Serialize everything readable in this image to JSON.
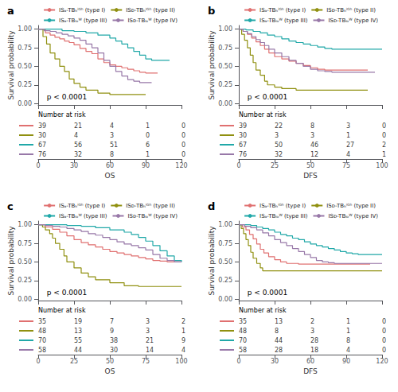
{
  "chart_data": [
    {
      "type": "step",
      "title": "a",
      "xlabel": "OS",
      "ylabel": "Survival probability",
      "xlim": [
        0,
        120
      ],
      "xticks": [
        0,
        30,
        60,
        90,
        120
      ],
      "ylim": [
        -0.02,
        1.05
      ],
      "yticks": [
        {
          "value": 0.0,
          "label": "0.00"
        },
        {
          "value": 0.25,
          "label": "0.25"
        },
        {
          "value": 0.5,
          "label": "0.50"
        },
        {
          "value": 0.75,
          "label": "0.75"
        },
        {
          "value": 1.0,
          "label": "1.00"
        }
      ],
      "annotations": [
        "p < 0.0001"
      ],
      "legend": "upper right",
      "grid": false,
      "series": [
        {
          "name": "ISₐ-TBₕⁱᴳʰ (type I)",
          "color": "#E07070",
          "x": [
            0,
            6,
            10,
            14,
            18,
            22,
            26,
            30,
            35,
            40,
            45,
            50,
            55,
            60,
            65,
            70,
            75,
            80,
            85,
            90,
            95,
            100
          ],
          "values": [
            1.0,
            0.95,
            0.92,
            0.89,
            0.87,
            0.84,
            0.82,
            0.79,
            0.74,
            0.7,
            0.67,
            0.6,
            0.55,
            0.52,
            0.5,
            0.48,
            0.46,
            0.44,
            0.42,
            0.41,
            0.41,
            0.41
          ]
        },
        {
          "name": "ISᴅ-TBₕⁱᴳʰ (type II)",
          "color": "#909010",
          "x": [
            0,
            4,
            7,
            10,
            14,
            18,
            22,
            26,
            30,
            35,
            40,
            50,
            60,
            70,
            80,
            90
          ],
          "values": [
            1.0,
            0.9,
            0.8,
            0.68,
            0.6,
            0.5,
            0.43,
            0.33,
            0.27,
            0.22,
            0.18,
            0.14,
            0.12,
            0.12,
            0.12,
            0.12
          ]
        },
        {
          "name": "ISₐ-TBₗₒᵂ (type III)",
          "color": "#20A8A8",
          "x": [
            0,
            10,
            20,
            30,
            40,
            50,
            60,
            65,
            70,
            75,
            80,
            85,
            90,
            95,
            100,
            105,
            110
          ],
          "values": [
            1.0,
            1.0,
            0.98,
            0.97,
            0.95,
            0.92,
            0.88,
            0.84,
            0.8,
            0.75,
            0.7,
            0.65,
            0.6,
            0.58,
            0.58,
            0.58,
            0.58
          ]
        },
        {
          "name": "ISᴅ-TBₗₒᵂ (type IV)",
          "color": "#9878A8",
          "x": [
            0,
            5,
            10,
            15,
            20,
            25,
            30,
            35,
            40,
            45,
            50,
            55,
            60,
            65,
            70,
            75,
            80,
            85,
            90,
            95
          ],
          "values": [
            1.0,
            0.98,
            0.97,
            0.95,
            0.93,
            0.91,
            0.88,
            0.85,
            0.8,
            0.75,
            0.68,
            0.58,
            0.5,
            0.43,
            0.37,
            0.32,
            0.3,
            0.28,
            0.28,
            0.28
          ]
        }
      ],
      "at_risk": {
        "title": "Number at risk",
        "times": [
          0,
          30,
          60,
          90,
          120
        ],
        "rows": [
          [
            39,
            21,
            4,
            1,
            0
          ],
          [
            30,
            4,
            3,
            0,
            0
          ],
          [
            67,
            56,
            51,
            6,
            0
          ],
          [
            76,
            32,
            8,
            1,
            0
          ]
        ]
      }
    },
    {
      "type": "step",
      "title": "b",
      "xlabel": "DFS",
      "ylabel": "Survival probability",
      "xlim": [
        0,
        100
      ],
      "xticks": [
        0,
        25,
        50,
        75,
        100
      ],
      "ylim": [
        -0.02,
        1.05
      ],
      "yticks": [
        {
          "value": 0.0,
          "label": "0.00"
        },
        {
          "value": 0.25,
          "label": "0.25"
        },
        {
          "value": 0.5,
          "label": "0.50"
        },
        {
          "value": 0.75,
          "label": "0.75"
        },
        {
          "value": 1.0,
          "label": "1.00"
        }
      ],
      "annotations": [
        "p < 0.0001"
      ],
      "legend": "upper right",
      "grid": false,
      "series": [
        {
          "name": "ISₐ-TBₕⁱᴳʰ (type I)",
          "color": "#E07070",
          "x": [
            0,
            3,
            6,
            9,
            12,
            15,
            18,
            21,
            25,
            30,
            35,
            40,
            45,
            50,
            55,
            60,
            65,
            70,
            75,
            80,
            85,
            90
          ],
          "values": [
            1.0,
            0.97,
            0.93,
            0.88,
            0.83,
            0.78,
            0.73,
            0.68,
            0.63,
            0.6,
            0.57,
            0.54,
            0.51,
            0.48,
            0.46,
            0.45,
            0.45,
            0.45,
            0.45,
            0.45,
            0.45,
            0.45
          ]
        },
        {
          "name": "ISᴅ-TBₕⁱᴳʰ (type II)",
          "color": "#909010",
          "x": [
            0,
            2,
            4,
            6,
            8,
            10,
            12,
            15,
            18,
            20,
            25,
            30,
            40,
            55,
            60,
            65,
            70,
            80,
            90
          ],
          "values": [
            1.0,
            0.93,
            0.85,
            0.75,
            0.65,
            0.55,
            0.45,
            0.38,
            0.3,
            0.25,
            0.22,
            0.2,
            0.18,
            0.18,
            0.18,
            0.18,
            0.18,
            0.18,
            0.18
          ]
        },
        {
          "name": "ISₐ-TBₗₒᵂ (type III)",
          "color": "#20A8A8",
          "x": [
            0,
            5,
            10,
            15,
            20,
            25,
            30,
            35,
            40,
            45,
            50,
            55,
            60,
            65,
            70,
            75,
            80,
            85,
            90,
            95,
            100
          ],
          "values": [
            1.0,
            0.99,
            0.97,
            0.95,
            0.92,
            0.9,
            0.87,
            0.84,
            0.82,
            0.8,
            0.78,
            0.76,
            0.74,
            0.73,
            0.73,
            0.73,
            0.73,
            0.73,
            0.73,
            0.73,
            0.73
          ]
        },
        {
          "name": "ISᴅ-TBₗₒᵂ (type IV)",
          "color": "#9878A8",
          "x": [
            0,
            3,
            6,
            9,
            12,
            15,
            18,
            21,
            25,
            30,
            35,
            40,
            45,
            50,
            55,
            60,
            65,
            70,
            75,
            80,
            85,
            90,
            95
          ],
          "values": [
            1.0,
            0.97,
            0.94,
            0.9,
            0.86,
            0.82,
            0.78,
            0.73,
            0.68,
            0.63,
            0.58,
            0.54,
            0.5,
            0.46,
            0.44,
            0.43,
            0.42,
            0.42,
            0.42,
            0.42,
            0.42,
            0.42,
            0.42
          ]
        }
      ],
      "at_risk": {
        "title": "Number at risk",
        "times": [
          0,
          25,
          50,
          75,
          100
        ],
        "rows": [
          [
            39,
            22,
            8,
            3,
            0
          ],
          [
            30,
            3,
            3,
            1,
            0
          ],
          [
            67,
            50,
            46,
            27,
            2
          ],
          [
            76,
            32,
            12,
            4,
            1
          ]
        ]
      }
    },
    {
      "type": "step",
      "title": "c",
      "xlabel": "OS",
      "ylabel": "Survival probability",
      "xlim": [
        0,
        100
      ],
      "xticks": [
        0,
        25,
        50,
        75,
        100
      ],
      "ylim": [
        -0.02,
        1.05
      ],
      "yticks": [
        {
          "value": 0.0,
          "label": "0.00"
        },
        {
          "value": 0.25,
          "label": "0.25"
        },
        {
          "value": 0.5,
          "label": "0.50"
        },
        {
          "value": 0.75,
          "label": "0.75"
        },
        {
          "value": 1.0,
          "label": "1.00"
        }
      ],
      "annotations": [
        "p < 0.0001"
      ],
      "legend": "upper right",
      "grid": false,
      "series": [
        {
          "name": "ISₐ-TBₕⁱᴳʰ (type I)",
          "color": "#E07070",
          "x": [
            0,
            5,
            10,
            15,
            20,
            25,
            30,
            35,
            40,
            45,
            50,
            55,
            60,
            65,
            70,
            75,
            80,
            85,
            90,
            95,
            100
          ],
          "values": [
            1.0,
            0.97,
            0.94,
            0.9,
            0.85,
            0.8,
            0.76,
            0.73,
            0.7,
            0.67,
            0.64,
            0.62,
            0.6,
            0.58,
            0.56,
            0.54,
            0.52,
            0.51,
            0.5,
            0.5,
            0.5
          ]
        },
        {
          "name": "ISᴅ-TBₕⁱᴳʰ (type II)",
          "color": "#909010",
          "x": [
            0,
            3,
            5,
            8,
            10,
            12,
            15,
            18,
            20,
            25,
            30,
            35,
            40,
            50,
            60,
            70,
            80,
            90,
            100
          ],
          "values": [
            1.0,
            0.97,
            0.93,
            0.88,
            0.82,
            0.75,
            0.67,
            0.58,
            0.5,
            0.42,
            0.35,
            0.3,
            0.26,
            0.22,
            0.18,
            0.17,
            0.17,
            0.17,
            0.17
          ]
        },
        {
          "name": "ISₐ-TBₗₒᵂ (type III)",
          "color": "#20A8A8",
          "x": [
            0,
            10,
            20,
            30,
            40,
            50,
            60,
            65,
            70,
            75,
            80,
            85,
            90,
            95,
            100
          ],
          "values": [
            1.0,
            1.0,
            0.99,
            0.98,
            0.96,
            0.93,
            0.9,
            0.87,
            0.83,
            0.78,
            0.72,
            0.65,
            0.58,
            0.52,
            0.5
          ]
        },
        {
          "name": "ISᴅ-TBₗₒᵂ (type IV)",
          "color": "#9878A8",
          "x": [
            0,
            5,
            10,
            15,
            20,
            25,
            30,
            35,
            40,
            45,
            50,
            55,
            60,
            65,
            70,
            75,
            80,
            85,
            90,
            95,
            100
          ],
          "values": [
            1.0,
            0.99,
            0.98,
            0.97,
            0.95,
            0.93,
            0.91,
            0.88,
            0.86,
            0.83,
            0.8,
            0.77,
            0.74,
            0.72,
            0.69,
            0.66,
            0.6,
            0.55,
            0.52,
            0.5,
            0.5
          ]
        }
      ],
      "at_risk": {
        "title": "Number at risk",
        "times": [
          0,
          25,
          50,
          75,
          100
        ],
        "rows": [
          [
            35,
            19,
            7,
            3,
            2
          ],
          [
            48,
            13,
            9,
            3,
            1
          ],
          [
            70,
            55,
            38,
            21,
            9
          ],
          [
            58,
            44,
            30,
            14,
            4
          ]
        ]
      }
    },
    {
      "type": "step",
      "title": "d",
      "xlabel": "DFS",
      "ylabel": "Survival probability",
      "xlim": [
        0,
        120
      ],
      "xticks": [
        0,
        30,
        60,
        90,
        120
      ],
      "ylim": [
        -0.02,
        1.05
      ],
      "yticks": [
        {
          "value": 0.0,
          "label": "0.00"
        },
        {
          "value": 0.25,
          "label": "0.25"
        },
        {
          "value": 0.5,
          "label": "0.50"
        },
        {
          "value": 0.75,
          "label": "0.75"
        },
        {
          "value": 1.0,
          "label": "1.00"
        }
      ],
      "annotations": [
        "p < 0.0001"
      ],
      "legend": "upper right",
      "grid": false,
      "series": [
        {
          "name": "ISₐ-TBₕⁱᴳʰ (type I)",
          "color": "#E07070",
          "x": [
            0,
            3,
            6,
            9,
            12,
            15,
            18,
            21,
            25,
            30,
            35,
            40,
            50,
            55,
            60,
            65,
            70,
            75,
            80,
            85,
            90,
            95,
            100,
            110
          ],
          "values": [
            1.0,
            0.97,
            0.93,
            0.87,
            0.81,
            0.74,
            0.67,
            0.62,
            0.57,
            0.53,
            0.5,
            0.48,
            0.47,
            0.47,
            0.47,
            0.47,
            0.47,
            0.47,
            0.47,
            0.47,
            0.47,
            0.47,
            0.47,
            0.47
          ]
        },
        {
          "name": "ISᴅ-TBₕⁱᴳʰ (type II)",
          "color": "#909010",
          "x": [
            0,
            2,
            4,
            6,
            8,
            10,
            12,
            15,
            18,
            20,
            25,
            30,
            35,
            40,
            60,
            80,
            100,
            120
          ],
          "values": [
            1.0,
            0.95,
            0.88,
            0.8,
            0.72,
            0.63,
            0.55,
            0.48,
            0.42,
            0.38,
            0.38,
            0.38,
            0.38,
            0.38,
            0.38,
            0.38,
            0.38,
            0.38
          ]
        },
        {
          "name": "ISₐ-TBₗₒᵂ (type III)",
          "color": "#20A8A8",
          "x": [
            0,
            5,
            10,
            15,
            20,
            25,
            30,
            35,
            40,
            45,
            50,
            55,
            60,
            65,
            70,
            75,
            80,
            85,
            90,
            95,
            100,
            105,
            110,
            115,
            120
          ],
          "values": [
            1.0,
            1.0,
            0.99,
            0.97,
            0.95,
            0.93,
            0.9,
            0.87,
            0.85,
            0.82,
            0.8,
            0.77,
            0.74,
            0.72,
            0.7,
            0.68,
            0.66,
            0.64,
            0.62,
            0.61,
            0.6,
            0.6,
            0.6,
            0.6,
            0.6
          ]
        },
        {
          "name": "ISᴅ-TBₗₒᵂ (type IV)",
          "color": "#9878A8",
          "x": [
            0,
            5,
            10,
            15,
            20,
            25,
            30,
            35,
            40,
            45,
            50,
            55,
            60,
            65,
            70,
            75,
            80,
            85,
            90,
            95,
            100,
            105,
            110,
            115,
            120
          ],
          "values": [
            1.0,
            0.98,
            0.96,
            0.93,
            0.89,
            0.85,
            0.8,
            0.76,
            0.72,
            0.68,
            0.64,
            0.6,
            0.56,
            0.52,
            0.5,
            0.49,
            0.48,
            0.48,
            0.48,
            0.48,
            0.48,
            0.48,
            0.48,
            0.48,
            0.48
          ]
        }
      ],
      "at_risk": {
        "title": "Number at risk",
        "times": [
          0,
          30,
          60,
          90,
          120
        ],
        "rows": [
          [
            35,
            13,
            2,
            1,
            0
          ],
          [
            48,
            8,
            3,
            1,
            0
          ],
          [
            70,
            44,
            28,
            8,
            0
          ],
          [
            58,
            28,
            18,
            4,
            0
          ]
        ]
      }
    }
  ]
}
